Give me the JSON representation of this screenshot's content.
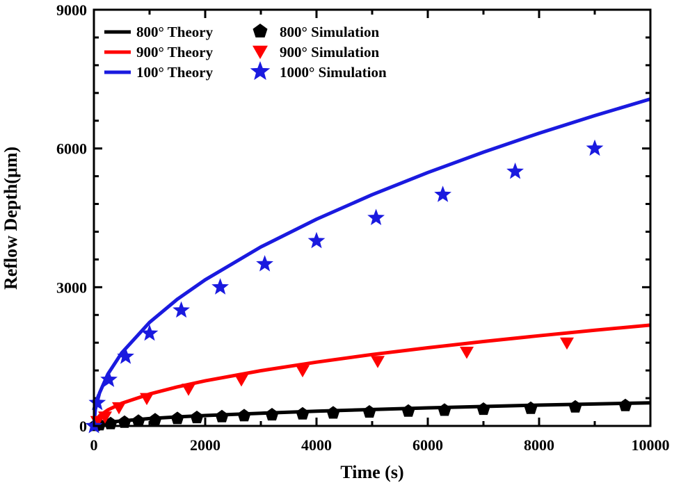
{
  "chart_data": {
    "type": "line",
    "xlabel": "Time (s)",
    "ylabel": "Reflow Depth(μm)",
    "xlim": [
      0,
      10000
    ],
    "ylim": [
      0,
      9000
    ],
    "xticks": [
      "0",
      "2000",
      "4000",
      "6000",
      "8000",
      "10000"
    ],
    "yticks": [
      "0",
      "3000",
      "6000",
      "9000"
    ],
    "grid": false,
    "legend_position": "top-left",
    "series": [
      {
        "name": "800°  Theory",
        "kind": "line",
        "color": "#000000",
        "x": [
          0,
          25,
          100,
          250,
          500,
          1000,
          1500,
          2000,
          3000,
          4000,
          5000,
          6000,
          7000,
          8000,
          9000,
          10000
        ],
        "y": [
          0,
          25,
          50,
          80,
          110,
          160,
          195,
          225,
          275,
          320,
          355,
          390,
          420,
          450,
          475,
          500
        ]
      },
      {
        "name": "900°  Theory",
        "kind": "line",
        "color": "#ff0000",
        "x": [
          0,
          25,
          100,
          250,
          500,
          1000,
          1500,
          2000,
          3000,
          4000,
          5000,
          6000,
          7000,
          8000,
          9000,
          10000
        ],
        "y": [
          0,
          110,
          220,
          345,
          490,
          690,
          845,
          975,
          1195,
          1380,
          1545,
          1690,
          1825,
          1950,
          2070,
          2180
        ]
      },
      {
        "name": "100°  Theory",
        "kind": "line",
        "color": "#1a1adf",
        "x": [
          0,
          25,
          100,
          250,
          500,
          1000,
          1500,
          2000,
          3000,
          4000,
          5000,
          6000,
          7000,
          8000,
          9000,
          10000
        ],
        "y": [
          0,
          355,
          710,
          1120,
          1580,
          2240,
          2740,
          3160,
          3870,
          4470,
          5000,
          5480,
          5920,
          6330,
          6710,
          7070
        ]
      },
      {
        "name": "800°  Simulation",
        "kind": "marker",
        "marker": "pentagon",
        "color": "#000000",
        "x": [
          30,
          100,
          300,
          550,
          800,
          1100,
          1500,
          1850,
          2300,
          2700,
          3200,
          3750,
          4300,
          4950,
          5650,
          6300,
          7000,
          7850,
          8650,
          9550
        ],
        "y": [
          10,
          25,
          50,
          80,
          100,
          130,
          160,
          180,
          200,
          220,
          240,
          260,
          280,
          300,
          320,
          340,
          360,
          380,
          410,
          440
        ]
      },
      {
        "name": "900°  Simulation",
        "kind": "marker",
        "marker": "triangle-down",
        "color": "#ff0000",
        "x": [
          60,
          200,
          450,
          950,
          1700,
          2650,
          3750,
          5100,
          6700,
          8500
        ],
        "y": [
          100,
          200,
          400,
          600,
          800,
          1000,
          1200,
          1400,
          1600,
          1800
        ]
      },
      {
        "name": "1000°  Simulation",
        "kind": "marker",
        "marker": "star",
        "color": "#1a1adf",
        "x": [
          0,
          60,
          270,
          570,
          1000,
          1570,
          2270,
          3070,
          4000,
          5070,
          6270,
          7570,
          9000
        ],
        "y": [
          0,
          500,
          1000,
          1500,
          2000,
          2500,
          3000,
          3500,
          4000,
          4500,
          5000,
          5500,
          6000
        ]
      }
    ]
  }
}
